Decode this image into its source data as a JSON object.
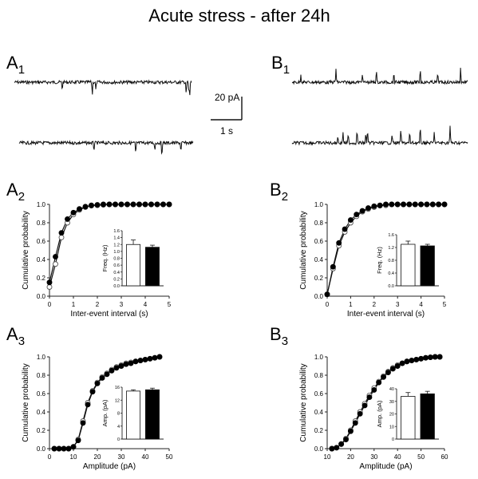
{
  "figure": {
    "title": "Acute stress - after 24h",
    "scale_bar": {
      "amplitude": "20 pA",
      "time": "1 s"
    }
  },
  "colors": {
    "control": "#ffffff",
    "stress": "#000000",
    "line": "#111111",
    "axis": "#222222"
  },
  "traces": {
    "A": {
      "label": "A",
      "subscript": "1",
      "direction": "down",
      "events_top": [
        0.27,
        0.44,
        0.46,
        0.97,
        0.985,
        0.99
      ],
      "events_bottom": [
        0.43,
        0.67,
        0.78,
        0.82,
        0.93
      ]
    },
    "B": {
      "label": "B",
      "subscript": "1",
      "direction": "up",
      "events_top": [
        0.05,
        0.25,
        0.4,
        0.48,
        0.58,
        0.73,
        0.83,
        0.96
      ],
      "events_bottom": [
        0.26,
        0.29,
        0.32,
        0.37,
        0.42,
        0.43,
        0.57,
        0.62,
        0.67,
        0.73,
        0.81,
        0.9
      ]
    }
  },
  "chart_data": [
    {
      "panel": "A2",
      "label": "A",
      "subscript": "2",
      "type": "line",
      "xlabel": "Inter-event interval (s)",
      "ylabel": "Cumulative probability",
      "xlim": [
        0,
        5
      ],
      "ylim": [
        0,
        1
      ],
      "xticks": [
        "0",
        "1",
        "2",
        "3",
        "4",
        "5"
      ],
      "yticks": [
        "0.0",
        "0.2",
        "0.4",
        "0.6",
        "0.8",
        "1.0"
      ],
      "series": [
        {
          "style": "open",
          "x": [
            0,
            0.25,
            0.5,
            0.75,
            1.0,
            1.25,
            1.5,
            1.75,
            2.0,
            2.25,
            2.5,
            2.75,
            3.0,
            3.25,
            3.5,
            3.75,
            4.0,
            4.25,
            4.5,
            4.75,
            5.0
          ],
          "y": [
            0.1,
            0.35,
            0.64,
            0.8,
            0.89,
            0.94,
            0.97,
            0.985,
            0.99,
            0.995,
            1,
            1,
            1,
            1,
            1,
            1,
            1,
            1,
            1,
            1,
            1
          ]
        },
        {
          "style": "filled",
          "x": [
            0,
            0.25,
            0.5,
            0.75,
            1.0,
            1.25,
            1.5,
            1.75,
            2.0,
            2.25,
            2.5,
            2.75,
            3.0,
            3.25,
            3.5,
            3.75,
            4.0,
            4.25,
            4.5,
            4.75,
            5.0
          ],
          "y": [
            0.15,
            0.43,
            0.69,
            0.84,
            0.91,
            0.95,
            0.975,
            0.99,
            0.995,
            1,
            1,
            1,
            1,
            1,
            1,
            1,
            1,
            1,
            1,
            1,
            1
          ]
        }
      ],
      "inset": {
        "ylabel": "Freq. (Hz)",
        "ylim": [
          0,
          1.6
        ],
        "yticks": [
          "0.0",
          "0.2",
          "0.4",
          "0.6",
          "0.8",
          "1.0",
          "1.2",
          "1.4",
          "1.6"
        ],
        "bars": [
          {
            "style": "open",
            "value": 1.2,
            "error": 0.13
          },
          {
            "style": "filled",
            "value": 1.12,
            "error": 0.06
          }
        ]
      }
    },
    {
      "panel": "B2",
      "label": "B",
      "subscript": "2",
      "type": "line",
      "xlabel": "Inter-event interval (s)",
      "ylabel": "Cumulative probability",
      "xlim": [
        0,
        5
      ],
      "ylim": [
        0,
        1
      ],
      "xticks": [
        "0",
        "1",
        "2",
        "3",
        "4",
        "5"
      ],
      "yticks": [
        "0.0",
        "0.2",
        "0.4",
        "0.6",
        "0.8",
        "1.0"
      ],
      "series": [
        {
          "style": "open",
          "x": [
            0,
            0.25,
            0.5,
            0.75,
            1.0,
            1.25,
            1.5,
            1.75,
            2.0,
            2.25,
            2.5,
            2.75,
            3.0,
            3.25,
            3.5,
            3.75,
            4.0,
            4.25,
            4.5,
            4.75,
            5.0
          ],
          "y": [
            0.02,
            0.3,
            0.55,
            0.7,
            0.8,
            0.87,
            0.92,
            0.95,
            0.97,
            0.985,
            0.99,
            1,
            1,
            1,
            1,
            1,
            1,
            1,
            1,
            1,
            1
          ]
        },
        {
          "style": "filled",
          "x": [
            0,
            0.25,
            0.5,
            0.75,
            1.0,
            1.25,
            1.5,
            1.75,
            2.0,
            2.25,
            2.5,
            2.75,
            3.0,
            3.25,
            3.5,
            3.75,
            4.0,
            4.25,
            4.5,
            4.75,
            5.0
          ],
          "y": [
            0.02,
            0.32,
            0.58,
            0.73,
            0.83,
            0.89,
            0.93,
            0.96,
            0.98,
            0.99,
            1,
            1,
            1,
            1,
            1,
            1,
            1,
            1,
            1,
            1,
            1
          ]
        }
      ],
      "inset": {
        "ylabel": "Freq. (Hz)",
        "ylim": [
          0,
          1.6
        ],
        "yticks": [
          "0.0",
          "0.4",
          "0.8",
          "1.2",
          "1.6"
        ],
        "bars": [
          {
            "style": "open",
            "value": 1.3,
            "error": 0.1
          },
          {
            "style": "filled",
            "value": 1.25,
            "error": 0.05
          }
        ]
      }
    },
    {
      "panel": "A3",
      "label": "A",
      "subscript": "3",
      "type": "line",
      "xlabel": "Amplitude (pA)",
      "ylabel": "Cumulative probability",
      "xlim": [
        0,
        50
      ],
      "ylim": [
        0,
        1
      ],
      "xticks": [
        "0",
        "10",
        "20",
        "30",
        "40",
        "50"
      ],
      "yticks": [
        "0.0",
        "0.2",
        "0.4",
        "0.6",
        "0.8",
        "1.0"
      ],
      "series": [
        {
          "style": "open",
          "x": [
            2,
            4,
            6,
            8,
            10,
            12,
            14,
            16,
            18,
            20,
            22,
            24,
            26,
            28,
            30,
            32,
            34,
            36,
            38,
            40,
            42,
            44,
            46
          ],
          "y": [
            0,
            0,
            0,
            0,
            0.02,
            0.1,
            0.3,
            0.5,
            0.63,
            0.72,
            0.78,
            0.82,
            0.86,
            0.89,
            0.91,
            0.93,
            0.94,
            0.95,
            0.96,
            0.97,
            0.98,
            0.99,
            1
          ]
        },
        {
          "style": "filled",
          "x": [
            2,
            4,
            6,
            8,
            10,
            12,
            14,
            16,
            18,
            20,
            22,
            24,
            26,
            28,
            30,
            32,
            34,
            36,
            38,
            40,
            42,
            44,
            46
          ],
          "y": [
            0,
            0,
            0,
            0,
            0.02,
            0.09,
            0.28,
            0.48,
            0.62,
            0.71,
            0.77,
            0.81,
            0.85,
            0.88,
            0.9,
            0.92,
            0.93,
            0.95,
            0.96,
            0.97,
            0.98,
            0.99,
            1
          ]
        }
      ],
      "inset": {
        "ylabel": "Amp. (pA)",
        "ylim": [
          0,
          16
        ],
        "yticks": [
          "0",
          "4",
          "8",
          "12",
          "16"
        ],
        "bars": [
          {
            "style": "open",
            "value": 14.8,
            "error": 0.4
          },
          {
            "style": "filled",
            "value": 15.2,
            "error": 0.5
          }
        ]
      }
    },
    {
      "panel": "B3",
      "label": "B",
      "subscript": "3",
      "type": "line",
      "xlabel": "Amplitude (pA)",
      "ylabel": "Cumulative probability",
      "xlim": [
        10,
        60
      ],
      "ylim": [
        0,
        1
      ],
      "xticks": [
        "10",
        "20",
        "30",
        "40",
        "50",
        "60"
      ],
      "yticks": [
        "0.0",
        "0.2",
        "0.4",
        "0.6",
        "0.8",
        "1.0"
      ],
      "series": [
        {
          "style": "open",
          "x": [
            12,
            14,
            16,
            18,
            20,
            22,
            24,
            26,
            28,
            30,
            32,
            34,
            36,
            38,
            40,
            42,
            44,
            46,
            48,
            50,
            52,
            54,
            56,
            58
          ],
          "y": [
            0,
            0.01,
            0.05,
            0.11,
            0.2,
            0.3,
            0.4,
            0.49,
            0.58,
            0.66,
            0.73,
            0.79,
            0.84,
            0.88,
            0.91,
            0.93,
            0.95,
            0.96,
            0.97,
            0.98,
            0.99,
            0.995,
            1,
            1
          ]
        },
        {
          "style": "filled",
          "x": [
            12,
            14,
            16,
            18,
            20,
            22,
            24,
            26,
            28,
            30,
            32,
            34,
            36,
            38,
            40,
            42,
            44,
            46,
            48,
            50,
            52,
            54,
            56,
            58
          ],
          "y": [
            0,
            0.01,
            0.05,
            0.1,
            0.19,
            0.28,
            0.38,
            0.47,
            0.56,
            0.64,
            0.72,
            0.78,
            0.83,
            0.87,
            0.9,
            0.93,
            0.95,
            0.96,
            0.97,
            0.98,
            0.99,
            0.995,
            1,
            1
          ]
        }
      ],
      "inset": {
        "ylabel": "Amp. (pA)",
        "ylim": [
          0,
          40
        ],
        "yticks": [
          "0",
          "10",
          "20",
          "30",
          "40"
        ],
        "bars": [
          {
            "style": "open",
            "value": 34,
            "error": 3
          },
          {
            "style": "filled",
            "value": 36,
            "error": 2
          }
        ]
      }
    }
  ]
}
